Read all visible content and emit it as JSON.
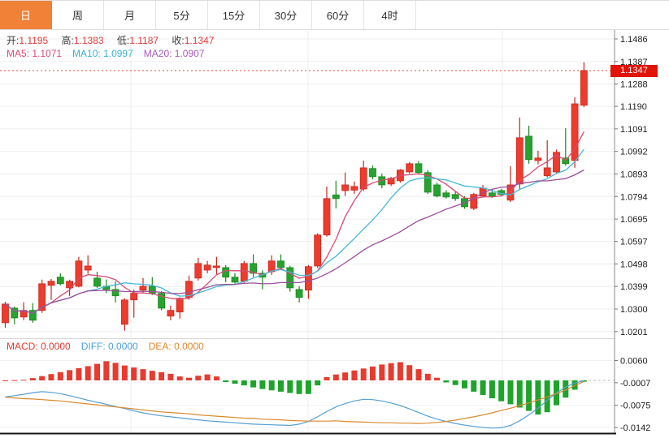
{
  "tabs": [
    {
      "label": "日",
      "active": true
    },
    {
      "label": "周",
      "active": false
    },
    {
      "label": "月",
      "active": false
    },
    {
      "label": "5分",
      "active": false
    },
    {
      "label": "15分",
      "active": false
    },
    {
      "label": "30分",
      "active": false
    },
    {
      "label": "60分",
      "active": false
    },
    {
      "label": "4时",
      "active": false
    }
  ],
  "legend": {
    "open_label": "开:",
    "open_value": "1.1195",
    "high_label": "高:",
    "high_value": "1.1383",
    "low_label": "低:",
    "low_value": "1.1187",
    "close_label": "收:",
    "close_value": "1.1347"
  },
  "ma_legend": [
    {
      "label": "MA5:",
      "value": "1.1071",
      "color": "#d94b72"
    },
    {
      "label": "MA10:",
      "value": "1.0997",
      "color": "#3ab3d6"
    },
    {
      "label": "MA20:",
      "value": "1.0907",
      "color": "#a75ab8"
    }
  ],
  "macd_legend": [
    {
      "label": "MACD:",
      "value": "0.0000",
      "color": "#e23b30"
    },
    {
      "label": "DIFF:",
      "value": "0.0000",
      "color": "#4aa0d8"
    },
    {
      "label": "DEA:",
      "value": "0.0000",
      "color": "#e0882a"
    }
  ],
  "price_badge": {
    "label": "1.1347"
  },
  "chart_data": {
    "type": "candlestick_with_macd",
    "ohlc_display": {
      "open": 1.1195,
      "high": 1.1383,
      "low": 1.1187,
      "close": 1.1347
    },
    "current_price": 1.1347,
    "price_axis_ticks": [
      "1.1486",
      "1.1387",
      "1.1288",
      "1.1190",
      "1.1091",
      "1.0992",
      "1.0893",
      "1.0794",
      "1.0695",
      "1.0597",
      "1.0498",
      "1.0399",
      "1.0300",
      "1.0201"
    ],
    "macd_axis_ticks": [
      "0.0060",
      "-0.0007",
      "-0.0075",
      "-0.0142"
    ],
    "up_color": "#ed3b2e",
    "up_border": "#c8281e",
    "down_color": "#28a22e",
    "down_border": "#1b8722",
    "ma_periods": [
      5,
      10,
      20
    ],
    "ma_colors": [
      "#d94b72",
      "#45b8d8",
      "#9b4f9b"
    ],
    "candles": [
      [
        1.024,
        1.0332,
        1.0218,
        1.0322
      ],
      [
        1.0304,
        1.0311,
        1.0233,
        1.0261
      ],
      [
        1.0265,
        1.033,
        1.0251,
        1.0294
      ],
      [
        1.0294,
        1.0326,
        1.024,
        1.0251
      ],
      [
        1.0294,
        1.0429,
        1.0283,
        1.0411
      ],
      [
        1.0404,
        1.0432,
        1.034,
        1.0422
      ],
      [
        1.044,
        1.0457,
        1.0404,
        1.0411
      ],
      [
        1.0393,
        1.0429,
        1.0358,
        1.0422
      ],
      [
        1.04,
        1.0529,
        1.0395,
        1.0511
      ],
      [
        1.0471,
        1.0536,
        1.0455,
        1.0489
      ],
      [
        1.0436,
        1.0464,
        1.0393,
        1.04
      ],
      [
        1.04,
        1.043,
        1.037,
        1.0386
      ],
      [
        1.0386,
        1.0422,
        1.0329,
        1.0358
      ],
      [
        1.0233,
        1.0347,
        1.0205,
        1.034
      ],
      [
        1.034,
        1.0386,
        1.0262,
        1.0369
      ],
      [
        1.0383,
        1.0436,
        1.0369,
        1.04
      ],
      [
        1.04,
        1.044,
        1.0361,
        1.0369
      ],
      [
        1.0369,
        1.0379,
        1.0294,
        1.0304
      ],
      [
        1.0269,
        1.0315,
        1.0251,
        1.0294
      ],
      [
        1.0287,
        1.0351,
        1.0258,
        1.0347
      ],
      [
        1.0351,
        1.0447,
        1.034,
        1.0422
      ],
      [
        1.0436,
        1.0525,
        1.0425,
        1.05
      ],
      [
        1.0471,
        1.0511,
        1.0457,
        1.0493
      ],
      [
        1.0482,
        1.0529,
        1.045,
        1.0489
      ],
      [
        1.0482,
        1.0493,
        1.0418,
        1.044
      ],
      [
        1.044,
        1.0457,
        1.0411,
        1.0418
      ],
      [
        1.0422,
        1.0511,
        1.0415,
        1.05
      ],
      [
        1.05,
        1.054,
        1.044,
        1.0457
      ],
      [
        1.0457,
        1.047,
        1.0386,
        1.044
      ],
      [
        1.0464,
        1.0536,
        1.045,
        1.0511
      ],
      [
        1.0511,
        1.054,
        1.0475,
        1.0482
      ],
      [
        1.0482,
        1.049,
        1.0376,
        1.0393
      ],
      [
        1.0386,
        1.04,
        1.0329,
        1.0351
      ],
      [
        1.0383,
        1.0493,
        1.0345,
        1.0486
      ],
      [
        1.0489,
        1.0632,
        1.048,
        1.0625
      ],
      [
        1.0625,
        1.0838,
        1.0618,
        1.0785
      ],
      [
        1.0801,
        1.0863,
        1.0742,
        1.0785
      ],
      [
        1.082,
        1.0899,
        1.0796,
        1.0845
      ],
      [
        1.0822,
        1.086,
        1.0806,
        1.0838
      ],
      [
        1.0827,
        1.0952,
        1.0818,
        1.092
      ],
      [
        1.0917,
        1.093,
        1.087,
        1.0881
      ],
      [
        1.0881,
        1.0895,
        1.083,
        1.0845
      ],
      [
        1.0849,
        1.088,
        1.084,
        1.0874
      ],
      [
        1.0863,
        1.0915,
        1.0855,
        1.091
      ],
      [
        1.0902,
        1.0945,
        1.0895,
        1.0938
      ],
      [
        1.0938,
        1.095,
        1.089,
        1.0899
      ],
      [
        1.0899,
        1.091,
        1.0805,
        1.0813
      ],
      [
        1.0845,
        1.0855,
        1.079,
        1.0796
      ],
      [
        1.081,
        1.0822,
        1.0785,
        1.0792
      ],
      [
        1.0803,
        1.0815,
        1.0775,
        1.0785
      ],
      [
        1.0785,
        1.0795,
        1.074,
        1.0749
      ],
      [
        1.0742,
        1.081,
        1.0735,
        1.0803
      ],
      [
        1.0796,
        1.0845,
        1.079,
        1.0831
      ],
      [
        1.081,
        1.0825,
        1.0788,
        1.0796
      ],
      [
        1.082,
        1.0828,
        1.0798,
        1.0803
      ],
      [
        1.0778,
        1.0927,
        1.077,
        1.0845
      ],
      [
        1.0849,
        1.1141,
        1.0822,
        1.1052
      ],
      [
        1.1059,
        1.1105,
        1.0938,
        1.0956
      ],
      [
        1.0952,
        1.0995,
        1.0935,
        1.0963
      ],
      [
        1.0885,
        1.1041,
        1.0878,
        1.092
      ],
      [
        1.0902,
        1.1,
        1.0895,
        1.0988
      ],
      [
        1.0963,
        1.1094,
        1.093,
        1.0938
      ],
      [
        1.0952,
        1.123,
        1.092,
        1.1201
      ],
      [
        1.1195,
        1.1383,
        1.1187,
        1.1347
      ]
    ],
    "macd": {
      "hist_up_color": "#e63b2e",
      "hist_down_color": "#1ea32b",
      "diff_color": "#57a0d4",
      "dea_color": "#d9882e",
      "histogram": [
        0.0,
        0.0001,
        0.0002,
        0.0007,
        0.0013,
        0.0019,
        0.0025,
        0.0031,
        0.0037,
        0.0043,
        0.005,
        0.0058,
        0.0053,
        0.0045,
        0.0039,
        0.0034,
        0.0029,
        0.0025,
        0.002,
        0.0012,
        0.0008,
        0.0014,
        0.0018,
        0.0012,
        -0.0005,
        -0.001,
        -0.0015,
        -0.0021,
        -0.0026,
        -0.003,
        -0.0034,
        -0.0038,
        -0.0041,
        -0.0041,
        -0.0015,
        0.001,
        0.0018,
        0.0024,
        0.003,
        0.0036,
        0.0042,
        0.0048,
        0.0052,
        0.0055,
        0.0046,
        0.0034,
        0.002,
        0.0008,
        -0.0006,
        -0.0014,
        -0.0024,
        -0.0034,
        -0.0044,
        -0.0054,
        -0.0063,
        -0.0072,
        -0.0082,
        -0.0092,
        -0.0103,
        -0.0096,
        -0.0075,
        -0.0052,
        -0.0028,
        -0.0004
      ],
      "diff": [
        -0.005,
        -0.0046,
        -0.0042,
        -0.0037,
        -0.0034,
        -0.0036,
        -0.004,
        -0.0046,
        -0.0053,
        -0.006,
        -0.0066,
        -0.0072,
        -0.0079,
        -0.0085,
        -0.0092,
        -0.0098,
        -0.0103,
        -0.0107,
        -0.011,
        -0.0113,
        -0.0116,
        -0.0119,
        -0.0122,
        -0.0124,
        -0.0126,
        -0.0128,
        -0.013,
        -0.0132,
        -0.0133,
        -0.0134,
        -0.0135,
        -0.0136,
        -0.0132,
        -0.0124,
        -0.011,
        -0.0094,
        -0.008,
        -0.007,
        -0.0062,
        -0.0057,
        -0.0058,
        -0.0062,
        -0.0068,
        -0.0076,
        -0.0086,
        -0.0097,
        -0.0108,
        -0.0117,
        -0.0124,
        -0.013,
        -0.0135,
        -0.0139,
        -0.0142,
        -0.0144,
        -0.0143,
        -0.0136,
        -0.0122,
        -0.0104,
        -0.0084,
        -0.006,
        -0.0038,
        -0.002,
        -0.0008,
        -0.0001
      ],
      "dea": [
        -0.0051,
        -0.0053,
        -0.0055,
        -0.0056,
        -0.0058,
        -0.006,
        -0.0062,
        -0.0065,
        -0.0068,
        -0.0071,
        -0.0074,
        -0.0077,
        -0.008,
        -0.0083,
        -0.0086,
        -0.0089,
        -0.0092,
        -0.0095,
        -0.0097,
        -0.0099,
        -0.0101,
        -0.0104,
        -0.0106,
        -0.0108,
        -0.011,
        -0.0112,
        -0.0114,
        -0.0115,
        -0.0117,
        -0.0118,
        -0.0119,
        -0.0121,
        -0.0122,
        -0.0123,
        -0.0123,
        -0.0123,
        -0.0122,
        -0.0124,
        -0.0125,
        -0.0126,
        -0.0127,
        -0.0128,
        -0.0128,
        -0.0129,
        -0.0129,
        -0.013,
        -0.0129,
        -0.0127,
        -0.0124,
        -0.012,
        -0.0115,
        -0.011,
        -0.0104,
        -0.0098,
        -0.0091,
        -0.0084,
        -0.0076,
        -0.0068,
        -0.0059,
        -0.005,
        -0.004,
        -0.0029,
        -0.0016,
        -0.0003
      ]
    },
    "layout_hints": {
      "grid": true,
      "vertical_gridlines_x": [
        161,
        379,
        618
      ],
      "legend_position": "top-left",
      "price_axis_side": "right"
    }
  }
}
